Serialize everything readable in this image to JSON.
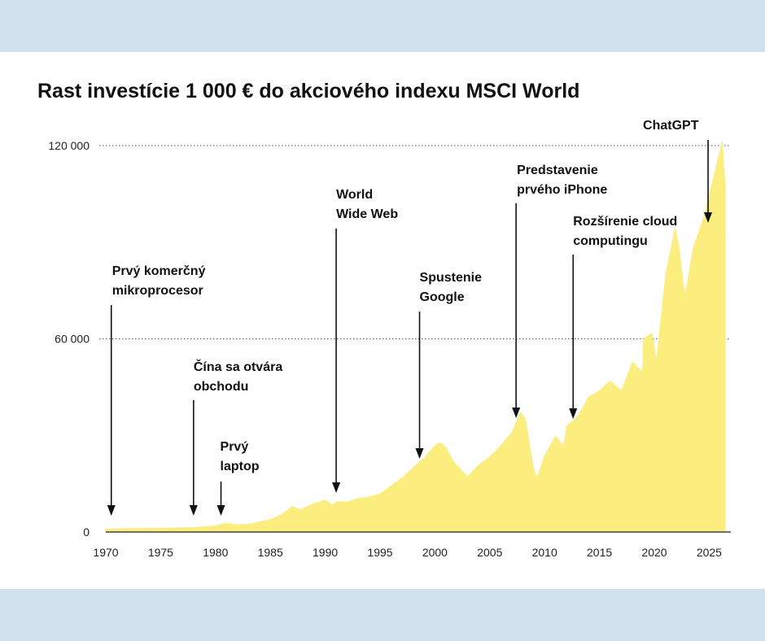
{
  "chart_data": {
    "type": "area",
    "title": "Rast investície 1 000 € do akciového indexu MSCI World",
    "xlabel": "",
    "ylabel": "",
    "xlim": [
      1970,
      2026.5
    ],
    "ylim": [
      0,
      120000
    ],
    "grid": "horizontal dotted at 60 000 and 120 000",
    "color": "#fbee7f",
    "x_ticks": [
      "1970",
      "1975",
      "1980",
      "1985",
      "1990",
      "1995",
      "2000",
      "2005",
      "2010",
      "2015",
      "2020",
      "2025"
    ],
    "y_ticks": [
      {
        "value": 0,
        "label": "0"
      },
      {
        "value": 60000,
        "label": "60 000"
      },
      {
        "value": 120000,
        "label": "120 000"
      }
    ],
    "series": [
      {
        "name": "MSCI World",
        "x": [
          1970,
          1972,
          1975,
          1978,
          1980,
          1981,
          1982,
          1983,
          1984,
          1985,
          1986,
          1987,
          1987.8,
          1988,
          1989,
          1990,
          1990.7,
          1991,
          1992,
          1993,
          1994,
          1995,
          1996,
          1997,
          1998,
          1998.6,
          1999,
          2000,
          2000.5,
          2001,
          2001.7,
          2002.5,
          2003,
          2004,
          2005,
          2006,
          2007,
          2007.8,
          2008.3,
          2009,
          2009.3,
          2010,
          2011,
          2011.7,
          2012,
          2013,
          2014,
          2015,
          2015.6,
          2016,
          2017,
          2018,
          2018.9,
          2019,
          2019.8,
          2020.2,
          2020.5,
          2021,
          2021.9,
          2022.3,
          2022.8,
          2023.5,
          2024,
          2024.5,
          2025,
          2025.5,
          2026.2,
          2026.5
        ],
        "values": [
          1000,
          1200,
          1300,
          1500,
          2000,
          2800,
          2400,
          2500,
          3200,
          4000,
          5500,
          8000,
          7000,
          7500,
          9000,
          10000,
          8500,
          9500,
          9500,
          10500,
          11000,
          12000,
          14500,
          17000,
          20000,
          22000,
          23000,
          27000,
          28000,
          26500,
          22000,
          19000,
          17500,
          21000,
          23500,
          27000,
          31000,
          37500,
          35000,
          20000,
          17000,
          24000,
          30000,
          27000,
          33000,
          36000,
          42000,
          44000,
          46000,
          47000,
          44000,
          53000,
          50000,
          60000,
          62000,
          54000,
          64000,
          80000,
          95000,
          88000,
          74000,
          88000,
          93000,
          98000,
          105000,
          112000,
          122000,
          107000
        ]
      }
    ],
    "annotations": [
      {
        "year": 1970.5,
        "lines": [
          "Prvý komerčný",
          "mikroprocesor"
        ]
      },
      {
        "year": 1978,
        "lines": [
          "Čína sa otvára",
          "obchodu"
        ]
      },
      {
        "year": 1980.5,
        "lines": [
          "Prvý",
          "laptop"
        ]
      },
      {
        "year": 1991,
        "lines": [
          "World",
          "Wide Web"
        ]
      },
      {
        "year": 1998.6,
        "lines": [
          "Spustenie",
          "Google"
        ]
      },
      {
        "year": 2007.4,
        "lines": [
          "Predstavenie",
          "prvého iPhone"
        ]
      },
      {
        "year": 2012.6,
        "lines": [
          "Rozšírenie cloud",
          "computingu"
        ]
      },
      {
        "year": 2024.9,
        "lines": [
          "ChatGPT"
        ]
      }
    ]
  }
}
